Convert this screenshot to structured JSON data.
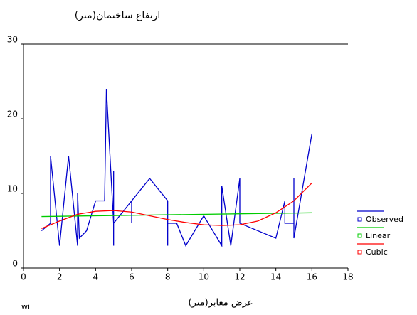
{
  "chart_data": {
    "type": "line",
    "title": "ارتفاع ساختمان(متر)",
    "x_label": "عرض معابر(متر)",
    "footnote": "wi",
    "xlim": [
      0,
      18
    ],
    "xticks": [
      0,
      2,
      4,
      6,
      8,
      10,
      12,
      14,
      16,
      18
    ],
    "ylim": [
      0,
      30
    ],
    "yticks": [
      0,
      10,
      20,
      30
    ],
    "legend": "right",
    "series": [
      {
        "name": "Observed",
        "color": "#0000cc",
        "x": [
          1,
          1.5,
          1.5,
          2,
          2.5,
          3,
          3,
          3.1,
          3.5,
          4,
          4.5,
          4.6,
          5,
          5,
          5,
          5,
          6,
          6,
          6,
          7,
          8,
          8,
          8,
          8.5,
          9,
          10,
          11,
          11,
          11.5,
          12,
          12,
          14,
          14.5,
          14.5,
          15,
          15,
          15,
          16
        ],
        "values": [
          5,
          6,
          15,
          3,
          15,
          3,
          10,
          4,
          5,
          9,
          9,
          24,
          6,
          3,
          13,
          6,
          9,
          6,
          9,
          12,
          9,
          3,
          6,
          6,
          3,
          7,
          3,
          11,
          3,
          12,
          6,
          4,
          9,
          6,
          6,
          12,
          4,
          18
        ]
      },
      {
        "name": "Linear",
        "color": "#00cc00",
        "x": [
          1,
          16
        ],
        "values": [
          6.9,
          7.4
        ]
      },
      {
        "name": "Cubic",
        "color": "#ff0000",
        "x": [
          1,
          2,
          3,
          4,
          5,
          6,
          7,
          8,
          9,
          10,
          11,
          12,
          13,
          14,
          15,
          16
        ],
        "values": [
          5.3,
          6.3,
          7.2,
          7.6,
          7.7,
          7.5,
          7.0,
          6.5,
          6.1,
          5.8,
          5.7,
          5.8,
          6.3,
          7.4,
          9.0,
          11.4
        ]
      }
    ]
  }
}
